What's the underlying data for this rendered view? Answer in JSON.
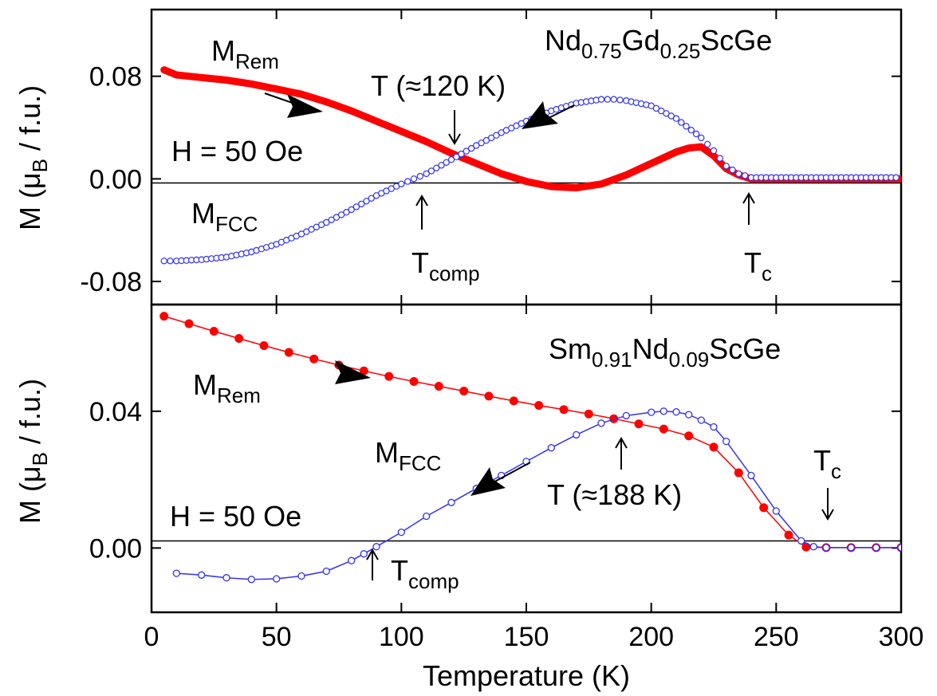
{
  "chart_data": [
    {
      "type": "line",
      "panel": "top",
      "title": "Nd0.75Gd0.25ScGe",
      "title_parts": {
        "base1": "Nd",
        "sub1": "0.75",
        "base2": "Gd",
        "sub2": "0.25",
        "base3": "ScGe"
      },
      "field_label": "H = 50 Oe",
      "xlabel": "Temperature (K)",
      "ylabel": "M (μB / f.u.)",
      "ylabel_parts": {
        "pre": "M (μ",
        "sub": "B",
        "post": " / f.u.)"
      },
      "xlim": [
        0,
        300
      ],
      "ylim": [
        -0.098,
        0.132
      ],
      "yticks": [
        -0.08,
        0.0,
        0.08
      ],
      "ytick_labels": [
        "-0.08",
        "0.00",
        "0.08"
      ],
      "series": [
        {
          "name": "MRem",
          "label_parts": {
            "base": "M",
            "sub": "Rem"
          },
          "style": "thick-red",
          "color": "#ff0000",
          "x": [
            5,
            10,
            20,
            30,
            40,
            50,
            60,
            70,
            80,
            90,
            100,
            110,
            120,
            130,
            140,
            150,
            160,
            170,
            180,
            190,
            200,
            210,
            215,
            220,
            225,
            230,
            235,
            240,
            250,
            260,
            270,
            280,
            290,
            300
          ],
          "y": [
            0.085,
            0.081,
            0.079,
            0.077,
            0.074,
            0.07,
            0.066,
            0.06,
            0.053,
            0.045,
            0.037,
            0.029,
            0.02,
            0.012,
            0.004,
            -0.002,
            -0.006,
            -0.007,
            -0.004,
            0.003,
            0.012,
            0.021,
            0.024,
            0.025,
            0.018,
            0.008,
            0.003,
            0.0,
            0.0,
            0.0,
            0.0,
            0.0,
            0.0,
            0.0
          ]
        },
        {
          "name": "MFCC",
          "label_parts": {
            "base": "M",
            "sub": "FCC"
          },
          "style": "open-blue-circles",
          "color": "#3333ee",
          "x": [
            5,
            10,
            20,
            30,
            40,
            50,
            60,
            70,
            80,
            90,
            100,
            105,
            110,
            120,
            130,
            140,
            150,
            160,
            170,
            180,
            185,
            190,
            200,
            210,
            220,
            225,
            230,
            235,
            240,
            250,
            260,
            270,
            280,
            290,
            300
          ],
          "y": [
            -0.064,
            -0.064,
            -0.063,
            -0.061,
            -0.057,
            -0.051,
            -0.043,
            -0.034,
            -0.024,
            -0.013,
            -0.004,
            0.0,
            0.004,
            0.015,
            0.026,
            0.036,
            0.045,
            0.053,
            0.059,
            0.062,
            0.062,
            0.061,
            0.057,
            0.047,
            0.032,
            0.022,
            0.01,
            0.004,
            0.001,
            0.001,
            0.001,
            0.001,
            0.001,
            0.001,
            0.001
          ]
        }
      ],
      "annotations": [
        {
          "text": "T (≈120 K)",
          "x": 120
        },
        {
          "text": "Tcomp",
          "base": "T",
          "sub": "comp",
          "x": 107
        },
        {
          "text": "Tc",
          "base": "T",
          "sub": "c",
          "x": 240
        }
      ]
    },
    {
      "type": "line",
      "panel": "bottom",
      "title": "Sm0.91Nd0.09ScGe",
      "title_parts": {
        "base1": "Sm",
        "sub1": "0.91",
        "base2": "Nd",
        "sub2": "0.09",
        "base3": "ScGe"
      },
      "field_label": "H = 50 Oe",
      "xlabel": "Temperature (K)",
      "ylabel": "M (μB / f.u.)",
      "ylabel_parts": {
        "pre": "M (μ",
        "sub": "B",
        "post": " / f.u.)"
      },
      "xlim": [
        0,
        300
      ],
      "xticks": [
        0,
        50,
        100,
        150,
        200,
        250,
        300
      ],
      "ylim": [
        -0.0188,
        0.0712
      ],
      "yticks": [
        0.0,
        0.04
      ],
      "ytick_labels": [
        "0.00",
        "0.04"
      ],
      "series": [
        {
          "name": "MRem",
          "label_parts": {
            "base": "M",
            "sub": "Rem"
          },
          "style": "red-filled-circles-line",
          "color": "#ff0000",
          "x": [
            5,
            15,
            25,
            35,
            45,
            55,
            65,
            75,
            85,
            95,
            105,
            115,
            125,
            135,
            145,
            155,
            165,
            175,
            185,
            195,
            205,
            215,
            225,
            235,
            245,
            255,
            262,
            270,
            280,
            290,
            300
          ],
          "y": [
            0.0678,
            0.0656,
            0.0634,
            0.0613,
            0.0592,
            0.0572,
            0.0553,
            0.0535,
            0.0518,
            0.0502,
            0.0487,
            0.0473,
            0.0459,
            0.0444,
            0.043,
            0.0417,
            0.0405,
            0.0392,
            0.0378,
            0.0363,
            0.0348,
            0.0328,
            0.0295,
            0.022,
            0.0118,
            0.0038,
            0.0003,
            0.0001,
            0.0001,
            0.0001,
            0.0001
          ]
        },
        {
          "name": "MFCC",
          "label_parts": {
            "base": "M",
            "sub": "FCC"
          },
          "style": "open-blue-circles-line",
          "color": "#3333ee",
          "x": [
            10,
            20,
            30,
            40,
            50,
            60,
            70,
            80,
            85,
            90,
            100,
            110,
            120,
            130,
            140,
            150,
            160,
            170,
            180,
            190,
            200,
            205,
            210,
            215,
            220,
            225,
            230,
            240,
            250,
            260,
            265,
            270,
            280,
            290,
            300
          ],
          "y": [
            -0.0074,
            -0.0079,
            -0.0087,
            -0.0092,
            -0.009,
            -0.0082,
            -0.0068,
            -0.0037,
            -0.0017,
            0.0004,
            0.0046,
            0.0093,
            0.0133,
            0.0174,
            0.0212,
            0.0253,
            0.0293,
            0.0331,
            0.0365,
            0.0387,
            0.0397,
            0.04,
            0.0398,
            0.039,
            0.0374,
            0.0354,
            0.0312,
            0.0212,
            0.0108,
            0.0021,
            0.0004,
            0.0001,
            0.0001,
            0.0001,
            0.0001
          ]
        }
      ],
      "annotations": [
        {
          "text": "T (≈188 K)",
          "x": 188
        },
        {
          "text": "Tcomp",
          "base": "T",
          "sub": "comp",
          "x": 88
        },
        {
          "text": "Tc",
          "base": "T",
          "sub": "c",
          "x": 270
        }
      ]
    }
  ]
}
